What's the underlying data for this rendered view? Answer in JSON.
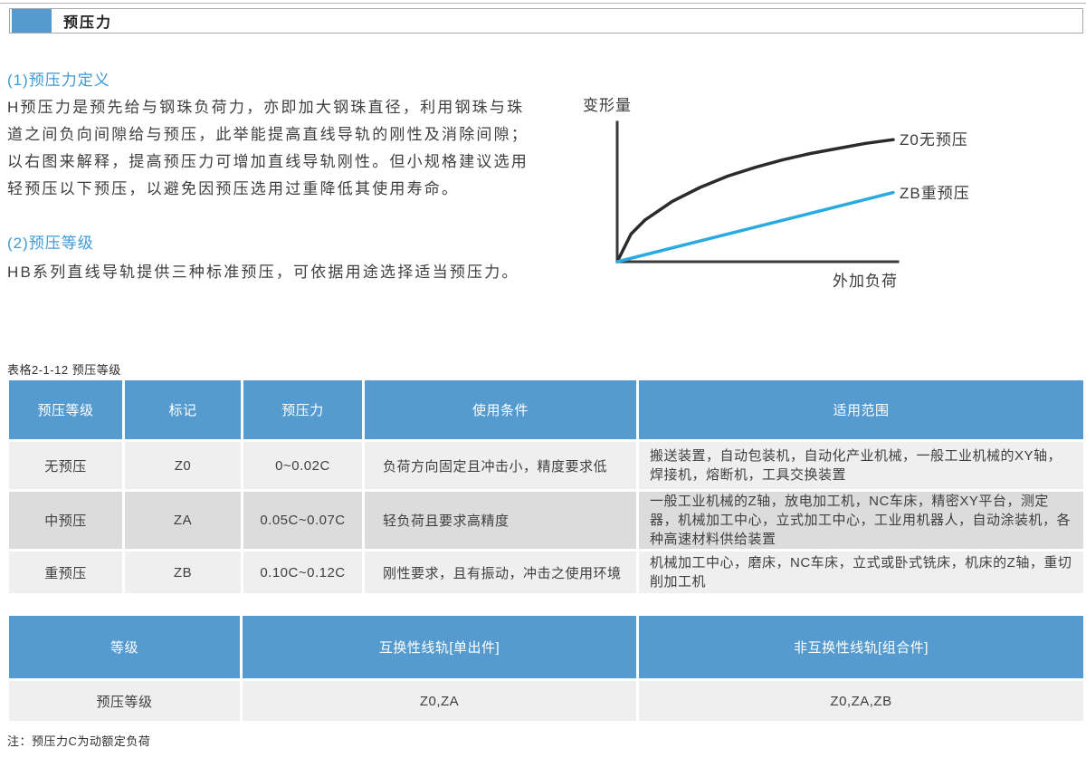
{
  "page": {
    "title": "预压力",
    "caption_table1": "表格2-1-12 预压等级",
    "note": "注：预压力C为动额定负荷"
  },
  "colors": {
    "accent_blue": "#569bd0",
    "heading_blue": "#3f9ad6",
    "chart_line_blue": "#29abe2",
    "chart_line_black": "#2b2b2b",
    "row_light": "#efefef",
    "row_mid": "#dcdcdc"
  },
  "sections": {
    "definition": {
      "heading": "(1)预压力定义",
      "body": "H预压力是预先给与钢珠负荷力，亦即加大钢珠直径，利用钢珠与珠\n道之间负向间隙给与预压，此举能提高直线导轨的刚性及消除间隙；\n以右图来解释，提高预压力可增加直线导轨刚性。但小规格建议选用\n轻预压以下预压，以避免因预压选用过重降低其使用寿命。"
    },
    "grades": {
      "heading": "(2)预压等级",
      "body": "HB系列直线导轨提供三种标准预压，可依据用途选择适当预压力。"
    }
  },
  "chart_data": {
    "type": "line",
    "title": "",
    "xlabel": "外加负荷",
    "ylabel": "变形量",
    "xlim_note": "qualitative, no tick labels",
    "grid": false,
    "legend_position": "labels at right end of each curve",
    "series": [
      {
        "name": "Z0无预压",
        "color": "#2b2b2b",
        "shape": "concave curve",
        "points_pct": [
          [
            0,
            0
          ],
          [
            5,
            22
          ],
          [
            10,
            33
          ],
          [
            20,
            48
          ],
          [
            30,
            59
          ],
          [
            40,
            68
          ],
          [
            50,
            75
          ],
          [
            60,
            81
          ],
          [
            70,
            86
          ],
          [
            80,
            90
          ],
          [
            90,
            94
          ],
          [
            100,
            97
          ]
        ]
      },
      {
        "name": "ZB重预压",
        "color": "#29abe2",
        "shape": "straight line",
        "points_pct": [
          [
            0,
            0
          ],
          [
            100,
            55
          ]
        ]
      }
    ]
  },
  "table1": {
    "headers": [
      "预压等级",
      "标记",
      "预压力",
      "使用条件",
      "适用范围"
    ],
    "rows": [
      [
        "无预压",
        "Z0",
        "0~0.02C",
        "负荷方向固定且冲击小，精度要求低",
        "搬送装置，自动包装机，自动化产业机械，一般工业机械的XY轴，焊接机，熔断机，工具交换装置"
      ],
      [
        "中预压",
        "ZA",
        "0.05C~0.07C",
        "轻负荷且要求高精度",
        "一般工业机械的Z轴，放电加工机，NC车床，精密XY平台，测定器，机械加工中心，立式加工中心，工业用机器人，自动涂装机，各种高速材料供给装置"
      ],
      [
        "重预压",
        "ZB",
        "0.10C~0.12C",
        "刚性要求，且有振动，冲击之使用环境",
        "机械加工中心，磨床，NC车床，立式或卧式铣床，机床的Z轴，重切削加工机"
      ]
    ]
  },
  "table2": {
    "headers": [
      "等级",
      "互换性线轨[单出件]",
      "非互换性线轨[组合件]"
    ],
    "rows": [
      [
        "预压等级",
        "Z0,ZA",
        "Z0,ZA,ZB"
      ]
    ]
  }
}
